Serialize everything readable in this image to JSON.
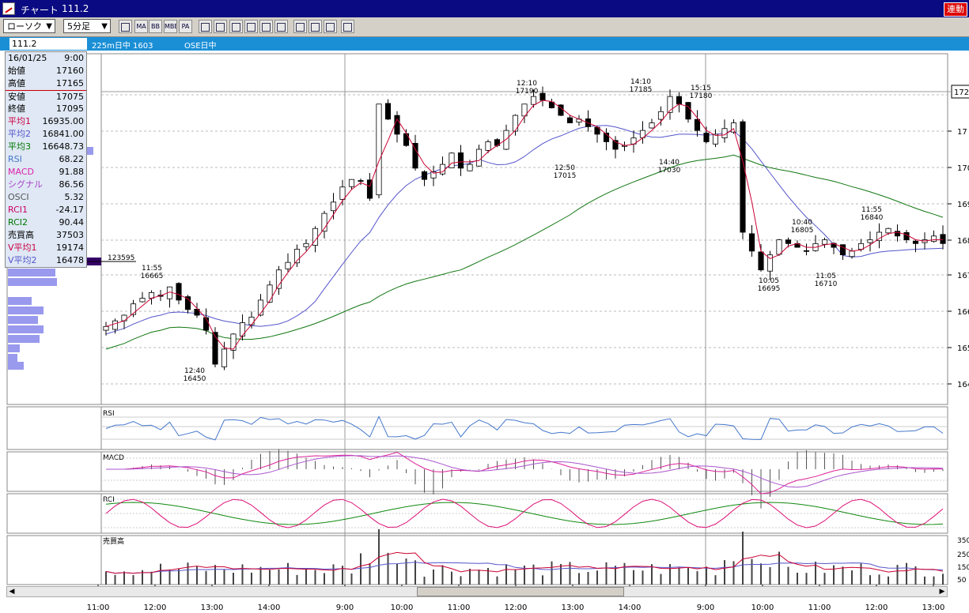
{
  "window": {
    "title": "チャート",
    "code": "111.2",
    "link_button": "連動"
  },
  "toolbar": {
    "chart_type": "ローソク",
    "interval": "5分足",
    "icons": [
      "list-icon",
      "MA",
      "BB",
      "MBE",
      "PA",
      "line-chart-icon",
      "grid-icon",
      "crosshair-icon",
      "zoom-icon",
      "bar-chart-icon",
      "settings-icon",
      "pen-icon",
      "pointer-icon",
      "eraser-icon",
      "fibonacci-icon"
    ]
  },
  "infobar": {
    "code": "111.2",
    "name": "225m日中 1603",
    "exchange": "OSE日中"
  },
  "data_panel": [
    {
      "k": "16/01/25",
      "v": "9:00",
      "color": "#000000"
    },
    {
      "k": "始値",
      "v": "17160",
      "color": "#000000"
    },
    {
      "k": "高値",
      "v": "17165",
      "color": "#000000"
    },
    {
      "k": "安値",
      "v": "17075",
      "color": "#000000"
    },
    {
      "k": "終値",
      "v": "17095",
      "color": "#000000"
    },
    {
      "k": "平均1",
      "v": "16935.00",
      "color": "#cc0044"
    },
    {
      "k": "平均2",
      "v": "16841.00",
      "color": "#5555cc"
    },
    {
      "k": "平均3",
      "v": "16648.73",
      "color": "#007700"
    },
    {
      "k": "RSI",
      "v": "68.22",
      "color": "#4477cc"
    },
    {
      "k": "MACD",
      "v": "91.88",
      "color": "#dd22aa"
    },
    {
      "k": "シグナル",
      "v": "86.56",
      "color": "#aa44cc"
    },
    {
      "k": "OSCI",
      "v": "5.32",
      "color": "#555555"
    },
    {
      "k": "RCI1",
      "v": "-24.17",
      "color": "#cc0066"
    },
    {
      "k": "RCI2",
      "v": "90.44",
      "color": "#007700"
    },
    {
      "k": "売買高",
      "v": "37503",
      "color": "#000000"
    },
    {
      "k": "V平均1",
      "v": "19174",
      "color": "#cc0044"
    },
    {
      "k": "V平均2",
      "v": "16478",
      "color": "#5555cc"
    }
  ],
  "chart_data": {
    "type": "candlestick",
    "x_tick_labels": [
      "11:00",
      "12:00",
      "13:00",
      "14:00",
      "9:00",
      "10:00",
      "11:00",
      "12:00",
      "13:00"
    ],
    "session_breaks": [
      "9:00",
      "9:00"
    ],
    "y_axis_visible_label": "172",
    "y_tick_labels": [
      "17",
      "170",
      "169",
      "168",
      "167",
      "166",
      "165",
      "164"
    ],
    "volume_profile_label": "123595",
    "panes": [
      "price",
      "RSI",
      "MACD",
      "RCI",
      "売買高"
    ],
    "volume_tick_labels": [
      "350",
      "250",
      "150",
      "50"
    ],
    "annotations": [
      {
        "time": "11:55",
        "value": "16665"
      },
      {
        "time": "12:40",
        "value": "16450"
      },
      {
        "time": "12:10",
        "value": "17190"
      },
      {
        "time": "12:50",
        "value": "17015"
      },
      {
        "time": "14:10",
        "value": "17185"
      },
      {
        "time": "14:40",
        "value": "17030"
      },
      {
        "time": "15:15",
        "value": "17180"
      },
      {
        "time": "10:05",
        "value": "16695"
      },
      {
        "time": "10:40",
        "value": "16805"
      },
      {
        "time": "11:05",
        "value": "16710"
      },
      {
        "time": "11:55",
        "value": "16840"
      }
    ],
    "close": [
      16570,
      16585,
      16600,
      16630,
      16645,
      16660,
      16650,
      16675,
      16640,
      16615,
      16600,
      16560,
      16470,
      16510,
      16550,
      16580,
      16595,
      16640,
      16680,
      16720,
      16740,
      16775,
      16790,
      16830,
      16870,
      16900,
      16940,
      16960,
      16955,
      16910,
      17160,
      17120,
      17080,
      17050,
      16990,
      16960,
      16980,
      17000,
      17030,
      16990,
      17000,
      17040,
      17060,
      17050,
      17090,
      17130,
      17160,
      17180,
      17170,
      17150,
      17130,
      17110,
      17120,
      17100,
      17080,
      17060,
      17040,
      17050,
      17070,
      17090,
      17110,
      17140,
      17180,
      17160,
      17120,
      17090,
      17060,
      17080,
      17095,
      17110,
      16820,
      16770,
      16720,
      16760,
      16800,
      16790,
      16780,
      16770,
      16790,
      16800,
      16780,
      16760,
      16770,
      16790,
      16800,
      16820,
      16830,
      16810,
      16800,
      16790,
      16800,
      16810,
      16790
    ]
  },
  "colors": {
    "ma1": "#cc0033",
    "ma2": "#5555cc",
    "ma3": "#117711",
    "rsi": "#4477cc",
    "macd": "#dd2299",
    "signal": "#aa55cc",
    "rci1": "#dd1177",
    "rci2": "#118811",
    "volume_bar": "#444444",
    "profile": "#9999ee"
  }
}
